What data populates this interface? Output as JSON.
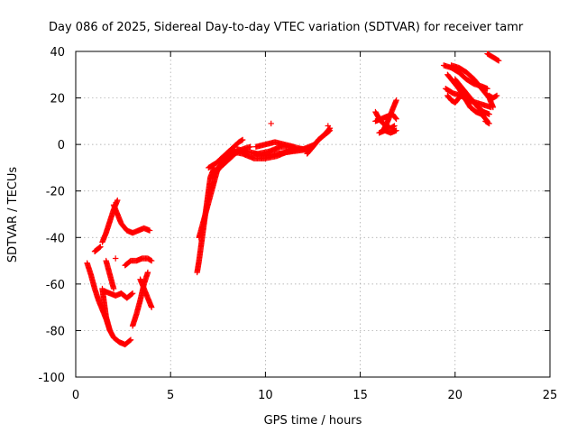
{
  "chart_data": {
    "type": "scatter",
    "title": "Day 086 of 2025, Sidereal Day-to-day VTEC variation (SDTVAR) for receiver tamr",
    "xlabel": "GPS time / hours",
    "ylabel": "SDTVAR / TECUs",
    "xlim": [
      0,
      25
    ],
    "ylim": [
      -100,
      40
    ],
    "xticks": [
      0,
      5,
      10,
      15,
      20,
      25
    ],
    "yticks": [
      -100,
      -80,
      -60,
      -40,
      -20,
      0,
      20,
      40
    ],
    "grid": true,
    "marker": "plus",
    "color": "#ff0000",
    "x_tick_labels": [
      "0",
      "5",
      "10",
      "15",
      "20",
      "25"
    ],
    "y_tick_labels": [
      "-100",
      "-80",
      "-60",
      "-40",
      "-20",
      "0",
      "20",
      "40"
    ],
    "tracks": [
      {
        "points": [
          [
            1.0,
            -46
          ],
          [
            1.15,
            -45
          ],
          [
            1.3,
            -44
          ]
        ]
      },
      {
        "points": [
          [
            1.4,
            -42
          ],
          [
            1.6,
            -38
          ],
          [
            1.8,
            -33
          ],
          [
            2.0,
            -28
          ],
          [
            2.2,
            -24
          ]
        ]
      },
      {
        "points": [
          [
            0.6,
            -51
          ],
          [
            0.8,
            -56
          ],
          [
            1.0,
            -62
          ],
          [
            1.2,
            -67
          ],
          [
            1.4,
            -71
          ],
          [
            1.6,
            -75
          ],
          [
            1.8,
            -80
          ],
          [
            2.0,
            -83
          ],
          [
            2.3,
            -85
          ],
          [
            2.6,
            -86
          ],
          [
            2.9,
            -84
          ]
        ]
      },
      {
        "points": [
          [
            1.4,
            -62
          ],
          [
            1.5,
            -68
          ],
          [
            1.6,
            -74
          ],
          [
            1.8,
            -80
          ]
        ]
      },
      {
        "points": [
          [
            1.5,
            -63
          ],
          [
            1.8,
            -64
          ],
          [
            2.1,
            -65
          ],
          [
            2.4,
            -64
          ],
          [
            2.7,
            -66
          ],
          [
            3.0,
            -64
          ]
        ]
      },
      {
        "points": [
          [
            1.6,
            -50
          ],
          [
            1.8,
            -56
          ],
          [
            2.0,
            -62
          ]
        ]
      },
      {
        "points": [
          [
            2.0,
            -26
          ],
          [
            2.2,
            -30
          ],
          [
            2.4,
            -34
          ],
          [
            2.7,
            -37
          ],
          [
            3.0,
            -38
          ],
          [
            3.3,
            -37
          ],
          [
            3.6,
            -36
          ],
          [
            3.9,
            -37
          ]
        ]
      },
      {
        "points": [
          [
            2.6,
            -52
          ],
          [
            2.9,
            -50
          ],
          [
            3.2,
            -50
          ],
          [
            3.5,
            -49
          ],
          [
            3.8,
            -49
          ],
          [
            4.0,
            -50
          ]
        ]
      },
      {
        "points": [
          [
            3.0,
            -78
          ],
          [
            3.2,
            -73
          ],
          [
            3.4,
            -67
          ],
          [
            3.6,
            -60
          ],
          [
            3.8,
            -55
          ]
        ]
      },
      {
        "points": [
          [
            3.4,
            -58
          ],
          [
            3.6,
            -62
          ],
          [
            3.8,
            -66
          ],
          [
            4.0,
            -70
          ]
        ]
      },
      {
        "points": [
          [
            2.1,
            -49
          ]
        ]
      },
      {
        "points": [
          [
            6.4,
            -55
          ],
          [
            6.5,
            -50
          ],
          [
            6.6,
            -44
          ],
          [
            6.7,
            -38
          ],
          [
            6.8,
            -32
          ],
          [
            6.9,
            -26
          ],
          [
            7.0,
            -20
          ],
          [
            7.1,
            -14
          ],
          [
            7.3,
            -10
          ]
        ]
      },
      {
        "points": [
          [
            6.5,
            -40
          ],
          [
            6.7,
            -34
          ],
          [
            6.9,
            -28
          ],
          [
            7.1,
            -22
          ],
          [
            7.3,
            -16
          ],
          [
            7.5,
            -10
          ],
          [
            7.8,
            -7
          ],
          [
            8.1,
            -5
          ],
          [
            8.4,
            -3
          ]
        ]
      },
      {
        "points": [
          [
            7.0,
            -10
          ],
          [
            7.4,
            -8
          ],
          [
            7.8,
            -5
          ],
          [
            8.2,
            -2
          ],
          [
            8.6,
            1
          ],
          [
            8.8,
            2
          ]
        ]
      },
      {
        "points": [
          [
            7.2,
            -14
          ],
          [
            7.6,
            -10
          ],
          [
            8.0,
            -7
          ],
          [
            8.4,
            -4
          ],
          [
            8.8,
            -2
          ],
          [
            9.2,
            -1
          ]
        ]
      },
      {
        "points": [
          [
            8.2,
            -3
          ],
          [
            8.8,
            -4
          ],
          [
            9.4,
            -6
          ],
          [
            10.0,
            -6
          ],
          [
            10.6,
            -5
          ],
          [
            11.2,
            -3
          ],
          [
            11.8,
            -2
          ],
          [
            12.4,
            -2
          ]
        ]
      },
      {
        "points": [
          [
            8.5,
            -2
          ],
          [
            9.0,
            -3
          ],
          [
            9.6,
            -4
          ],
          [
            10.2,
            -3
          ],
          [
            10.8,
            -1
          ],
          [
            11.4,
            -1
          ],
          [
            12.0,
            -2
          ],
          [
            12.6,
            0
          ]
        ]
      },
      {
        "points": [
          [
            9.5,
            -1
          ],
          [
            10.0,
            0
          ],
          [
            10.5,
            1
          ],
          [
            11.0,
            0
          ],
          [
            11.5,
            -1
          ]
        ]
      },
      {
        "points": [
          [
            9.4,
            -4
          ],
          [
            10.0,
            -5
          ],
          [
            10.6,
            -4
          ],
          [
            11.4,
            -3
          ],
          [
            12.4,
            -2
          ],
          [
            12.8,
            2
          ],
          [
            13.2,
            5
          ],
          [
            13.4,
            7
          ]
        ]
      },
      {
        "points": [
          [
            12.2,
            -4
          ],
          [
            12.5,
            -1
          ],
          [
            12.8,
            2
          ],
          [
            13.1,
            4
          ],
          [
            13.4,
            6
          ]
        ]
      },
      {
        "points": [
          [
            13.3,
            8
          ]
        ]
      },
      {
        "points": [
          [
            10.3,
            9
          ]
        ]
      },
      {
        "points": [
          [
            15.8,
            14
          ],
          [
            16.0,
            11
          ],
          [
            16.2,
            9
          ],
          [
            16.4,
            8
          ],
          [
            16.6,
            7
          ],
          [
            16.8,
            8
          ]
        ]
      },
      {
        "points": [
          [
            15.8,
            10
          ],
          [
            16.1,
            11
          ],
          [
            16.4,
            12
          ],
          [
            16.7,
            13
          ],
          [
            16.9,
            11
          ]
        ]
      },
      {
        "points": [
          [
            16.2,
            6
          ],
          [
            16.4,
            9
          ],
          [
            16.6,
            13
          ],
          [
            16.8,
            17
          ],
          [
            16.9,
            19
          ]
        ]
      },
      {
        "points": [
          [
            16.0,
            5
          ],
          [
            16.3,
            6
          ],
          [
            16.6,
            5
          ],
          [
            16.9,
            6
          ]
        ]
      },
      {
        "points": [
          [
            19.4,
            34
          ],
          [
            19.8,
            33
          ],
          [
            20.2,
            31
          ],
          [
            20.6,
            28
          ],
          [
            21.0,
            26
          ],
          [
            21.4,
            25
          ],
          [
            21.7,
            24
          ]
        ]
      },
      {
        "points": [
          [
            19.6,
            30
          ],
          [
            19.9,
            27
          ],
          [
            20.2,
            24
          ],
          [
            20.5,
            20
          ],
          [
            20.8,
            16
          ],
          [
            21.1,
            14
          ],
          [
            21.4,
            13
          ],
          [
            21.7,
            10
          ]
        ]
      },
      {
        "points": [
          [
            19.5,
            24
          ],
          [
            19.9,
            22
          ],
          [
            20.3,
            21
          ],
          [
            20.7,
            19
          ],
          [
            21.1,
            18
          ],
          [
            21.5,
            17
          ],
          [
            21.9,
            16
          ]
        ]
      },
      {
        "points": [
          [
            19.8,
            34
          ],
          [
            20.2,
            33
          ],
          [
            20.6,
            31
          ],
          [
            21.0,
            28
          ],
          [
            21.4,
            24
          ],
          [
            21.8,
            20
          ],
          [
            22.0,
            16
          ]
        ]
      },
      {
        "points": [
          [
            20.0,
            28
          ],
          [
            20.3,
            25
          ],
          [
            20.6,
            22
          ],
          [
            20.9,
            19
          ],
          [
            21.2,
            16
          ],
          [
            21.5,
            14
          ],
          [
            21.8,
            13
          ]
        ]
      },
      {
        "points": [
          [
            19.6,
            21
          ],
          [
            19.8,
            19
          ],
          [
            20.0,
            18
          ],
          [
            20.2,
            20
          ]
        ]
      },
      {
        "points": [
          [
            21.8,
            21
          ],
          [
            22.0,
            20
          ],
          [
            22.2,
            21
          ]
        ]
      },
      {
        "points": [
          [
            21.6,
            10
          ],
          [
            21.8,
            9
          ]
        ]
      },
      {
        "points": [
          [
            21.7,
            39
          ],
          [
            21.9,
            38
          ],
          [
            22.1,
            37
          ],
          [
            22.3,
            36
          ]
        ]
      }
    ]
  }
}
